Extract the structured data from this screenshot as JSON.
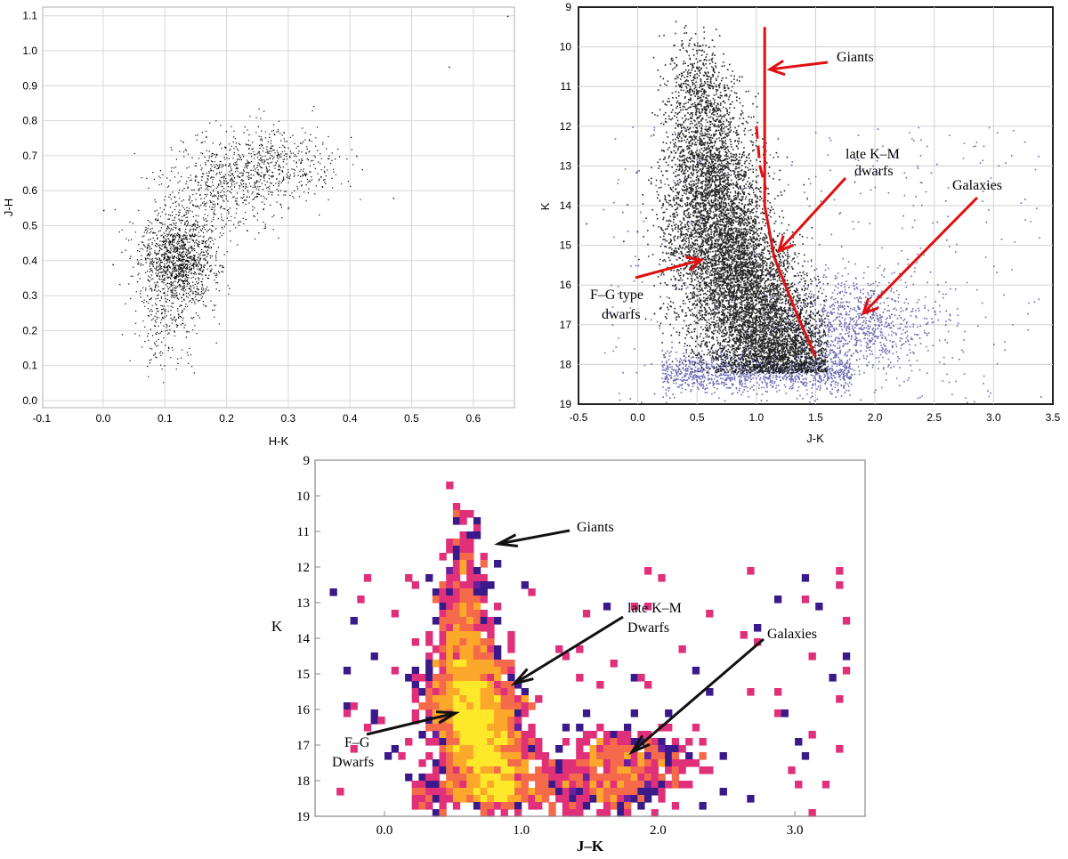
{
  "chart_data": [
    {
      "type": "scatter",
      "xlabel": "H-K",
      "ylabel": "J-H",
      "xlim": [
        -0.1,
        0.68
      ],
      "ylim": [
        -0.02,
        1.12
      ],
      "xticks": [
        "-0.1",
        "0.0",
        "0.1",
        "0.2",
        "0.3",
        "0.4",
        "0.5",
        "0.6"
      ],
      "yticks": [
        "0.0",
        "0.1",
        "0.2",
        "0.3",
        "0.4",
        "0.5",
        "0.6",
        "0.7",
        "0.8",
        "0.9",
        "1.0",
        "1.1"
      ],
      "grid": true,
      "point_color": "#000000",
      "density_model": [
        {
          "x": 0.12,
          "y": 0.4,
          "sx": 0.03,
          "sy": 0.07,
          "weight": 0.55
        },
        {
          "x": 0.2,
          "y": 0.62,
          "sx": 0.045,
          "sy": 0.07,
          "weight": 0.25
        },
        {
          "x": 0.28,
          "y": 0.68,
          "sx": 0.05,
          "sy": 0.05,
          "weight": 0.15
        },
        {
          "x": 0.1,
          "y": 0.2,
          "sx": 0.025,
          "sy": 0.06,
          "weight": 0.05
        }
      ],
      "point_count": 2600
    },
    {
      "type": "scatter",
      "xlabel": "J-K",
      "ylabel": "K",
      "xlim": [
        -0.5,
        3.5
      ],
      "ylim": [
        19,
        9
      ],
      "xticks": [
        "-0.5",
        "0.0",
        "0.5",
        "1.0",
        "1.5",
        "2.0",
        "2.5",
        "3.0",
        "3.5"
      ],
      "yticks": [
        "9",
        "10",
        "11",
        "12",
        "13",
        "14",
        "15",
        "16",
        "17",
        "18",
        "19"
      ],
      "grid": true,
      "series": [
        {
          "name": "",
          "color": "#000000"
        },
        {
          "name": "",
          "color": "#3a3a9a"
        }
      ],
      "annotations": [
        {
          "text": "Giants",
          "x": 1.65,
          "y": 10.2
        },
        {
          "text": [
            "late K–M",
            "dwarfs"
          ],
          "x": 1.75,
          "y": 12.6
        },
        {
          "text": "Galaxies",
          "x": 2.3,
          "y": 13.5
        },
        {
          "text": [
            "F–G type",
            "dwarfs"
          ],
          "x": -0.35,
          "y": 16.0
        }
      ],
      "divider_color": "#e01010"
    },
    {
      "type": "heatmap",
      "xlabel": "J–K",
      "ylabel": "K",
      "xlim": [
        -0.5,
        3.5
      ],
      "ylim": [
        19,
        9
      ],
      "xticks": [
        "0.0",
        "1.0",
        "2.0",
        "3.0"
      ],
      "yticks": [
        "9",
        "10",
        "11",
        "12",
        "13",
        "14",
        "15",
        "16",
        "17",
        "18",
        "19"
      ],
      "grid": false,
      "colormap": [
        "#3a1a8a",
        "#6a1fa0",
        "#b0238f",
        "#e0307a",
        "#f56a4a",
        "#fca82a",
        "#fde82a"
      ],
      "bin_size": [
        0.05,
        0.2
      ],
      "annotations": [
        {
          "text": "Giants",
          "x": 1.4,
          "y": 11.4
        },
        {
          "text": [
            "late K–M",
            "Dwarfs"
          ],
          "x": 1.75,
          "y": 13.6
        },
        {
          "text": "Galaxies",
          "x": 2.75,
          "y": 14.1
        },
        {
          "text": [
            "F–G",
            "Dwarfs"
          ],
          "x": -0.38,
          "y": 17.0
        }
      ]
    }
  ]
}
